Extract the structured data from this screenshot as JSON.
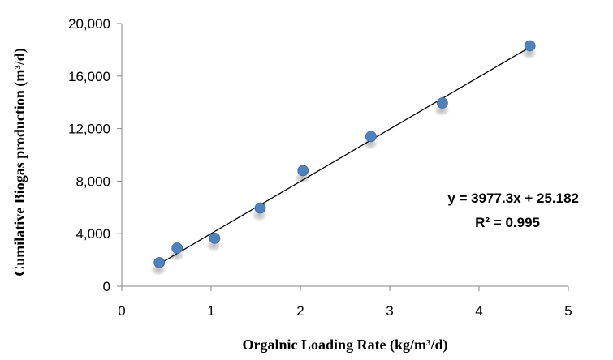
{
  "chart_data": {
    "type": "scatter",
    "title": "",
    "xlabel": "Orgalnic Loading Rate (kg/m³/d)",
    "ylabel": "Cumilative Biogas production (m³/d)",
    "xlim": [
      0,
      5
    ],
    "ylim": [
      0,
      20000
    ],
    "xticks": [
      0,
      1,
      2,
      3,
      4,
      5
    ],
    "yticks": [
      0,
      4000,
      8000,
      12000,
      16000,
      20000
    ],
    "xtick_labels": [
      "0",
      "1",
      "2",
      "3",
      "4",
      "5"
    ],
    "ytick_labels": [
      "0",
      "4,000",
      "8,000",
      "12,000",
      "16,000",
      "20,000"
    ],
    "grid": false,
    "marker_color": "#4F81BD",
    "series": [
      {
        "x": [
          0.42,
          0.62,
          1.04,
          1.55,
          2.03,
          2.79,
          3.59,
          4.57
        ],
        "y": [
          1800,
          2900,
          3650,
          5950,
          8800,
          11400,
          13950,
          18300
        ]
      }
    ],
    "trendline": {
      "type": "linear",
      "slope": 3977.3,
      "intercept": 25.182,
      "x_range": [
        0.42,
        4.57
      ],
      "equation": "y = 3977.3x + 25.182",
      "r_squared": "R² = 0.995"
    }
  }
}
